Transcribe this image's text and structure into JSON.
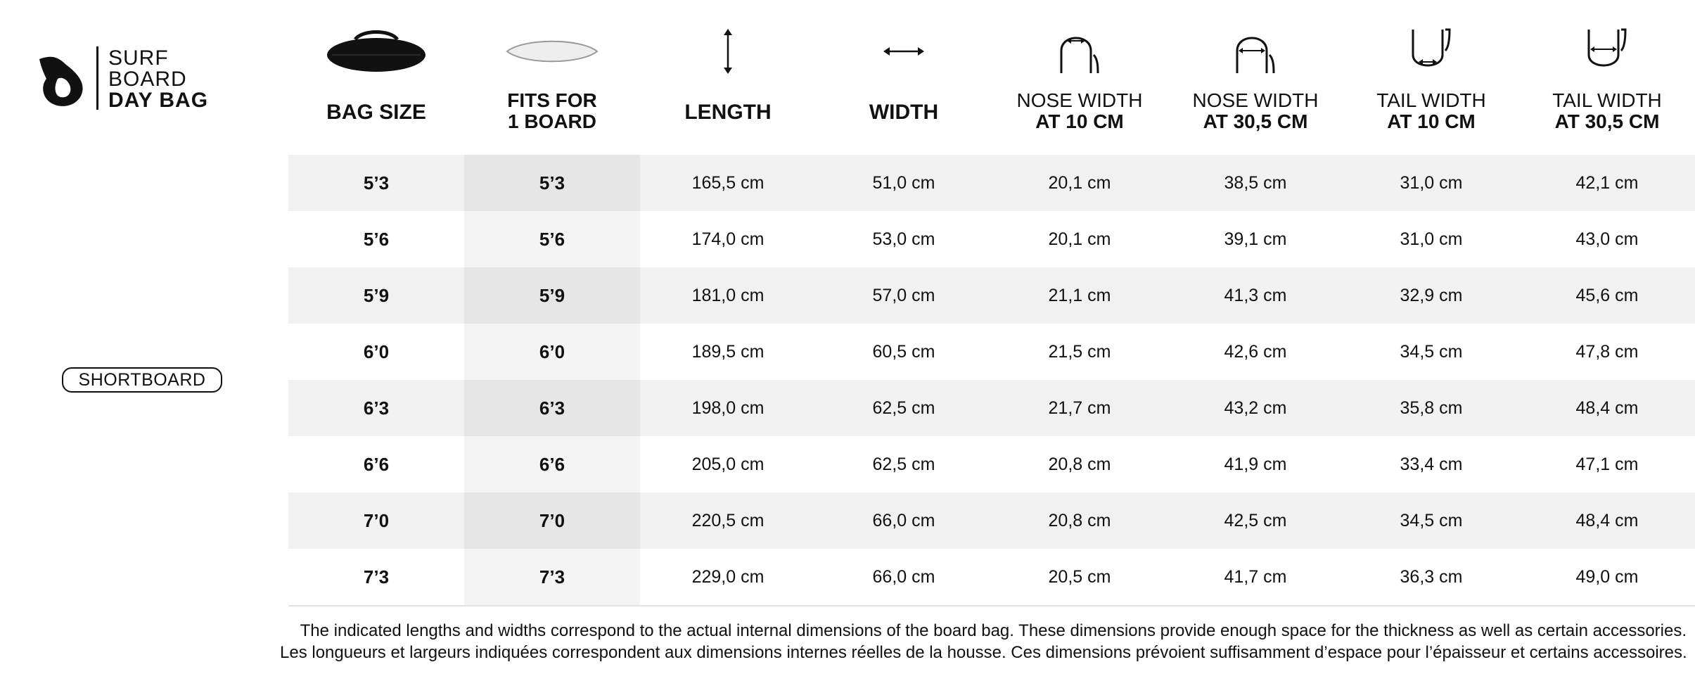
{
  "brand": {
    "line1": "SURF",
    "line2": "BOARD",
    "line3": "DAY BAG"
  },
  "category": "SHORTBOARD",
  "columns": [
    {
      "icon": "bag-silhouette-icon",
      "line1": "BAG SIZE",
      "line2": ""
    },
    {
      "icon": "board-silhouette-icon",
      "line1": "FITS FOR",
      "line2": "1 BOARD"
    },
    {
      "icon": "vertical-arrow-icon",
      "line1": "LENGTH",
      "line2": ""
    },
    {
      "icon": "horizontal-arrow-icon",
      "line1": "WIDTH",
      "line2": ""
    },
    {
      "icon": "nose-10cm-icon",
      "line1": "NOSE WIDTH",
      "line2": "AT 10 CM"
    },
    {
      "icon": "nose-30cm-icon",
      "line1": "NOSE WIDTH",
      "line2": "AT 30,5 CM"
    },
    {
      "icon": "tail-10cm-icon",
      "line1": "TAIL WIDTH",
      "line2": "AT 10 CM"
    },
    {
      "icon": "tail-30cm-icon",
      "line1": "TAIL WIDTH",
      "line2": "AT 30,5 CM"
    }
  ],
  "rows": [
    [
      "5’3",
      "5’3",
      "165,5 cm",
      "51,0 cm",
      "20,1 cm",
      "38,5 cm",
      "31,0 cm",
      "42,1 cm"
    ],
    [
      "5’6",
      "5’6",
      "174,0 cm",
      "53,0 cm",
      "20,1 cm",
      "39,1 cm",
      "31,0 cm",
      "43,0 cm"
    ],
    [
      "5’9",
      "5’9",
      "181,0 cm",
      "57,0 cm",
      "21,1 cm",
      "41,3 cm",
      "32,9 cm",
      "45,6 cm"
    ],
    [
      "6’0",
      "6’0",
      "189,5 cm",
      "60,5 cm",
      "21,5 cm",
      "42,6 cm",
      "34,5 cm",
      "47,8 cm"
    ],
    [
      "6’3",
      "6’3",
      "198,0 cm",
      "62,5 cm",
      "21,7 cm",
      "43,2 cm",
      "35,8 cm",
      "48,4 cm"
    ],
    [
      "6’6",
      "6’6",
      "205,0 cm",
      "62,5 cm",
      "20,8 cm",
      "41,9 cm",
      "33,4 cm",
      "47,1 cm"
    ],
    [
      "7’0",
      "7’0",
      "220,5 cm",
      "66,0 cm",
      "20,8 cm",
      "42,5 cm",
      "34,5 cm",
      "48,4 cm"
    ],
    [
      "7’3",
      "7’3",
      "229,0 cm",
      "66,0 cm",
      "20,5 cm",
      "41,7 cm",
      "36,3 cm",
      "49,0 cm"
    ]
  ],
  "notes": {
    "en": "The indicated lengths and widths correspond to the actual internal dimensions of the board bag. These dimensions provide enough space for the thickness as well as certain accessories.",
    "fr": "Les longueurs et largeurs indiquées correspondent aux dimensions internes réelles de la housse. Ces dimensions prévoient suffisamment d’espace pour l’épaisseur et certains accessoires."
  },
  "colors": {
    "text": "#111111",
    "row_shade": "#f1f1f1",
    "background": "#ffffff"
  }
}
